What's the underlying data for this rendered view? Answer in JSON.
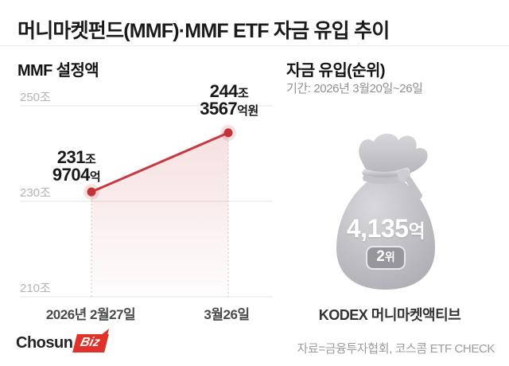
{
  "title": "머니마켓펀드(MMF)·MMF ETF 자금 유입 추이",
  "left": {
    "heading": "MMF 설정액"
  },
  "right": {
    "heading": "자금 유입(순위)",
    "period": "기간: 2026년 3월20일~26일",
    "bag": {
      "amount": "4,135",
      "amount_unit": "억",
      "rank": "2",
      "rank_unit": "위"
    },
    "fund_name": "KODEX 머니마켓액티브"
  },
  "footer": {
    "logo_chosun": "Chosun",
    "logo_biz": "Biz",
    "source": "자료=금융투자협회, 코스콤 ETF CHECK"
  },
  "chart_data": {
    "type": "line",
    "title": "MMF 설정액",
    "unit": "조원",
    "x": [
      "2026년 2월27일",
      "3월26일"
    ],
    "values": [
      231.9704,
      244.3567
    ],
    "point_labels": [
      {
        "line1_num": "231",
        "line1_suffix": "조",
        "line2_num": "9704",
        "line2_suffix": "억"
      },
      {
        "line1_num": "244",
        "line1_suffix": "조",
        "line2_num": "3567",
        "line2_suffix": "억원"
      }
    ],
    "yticks": [
      {
        "value": 250,
        "label": "250조"
      },
      {
        "value": 230,
        "label": "230조"
      },
      {
        "value": 210,
        "label": "210조"
      }
    ],
    "ylim": [
      208,
      252
    ],
    "grid": true,
    "legend": false,
    "line_color": "#c63a3f",
    "area_fade": true
  }
}
